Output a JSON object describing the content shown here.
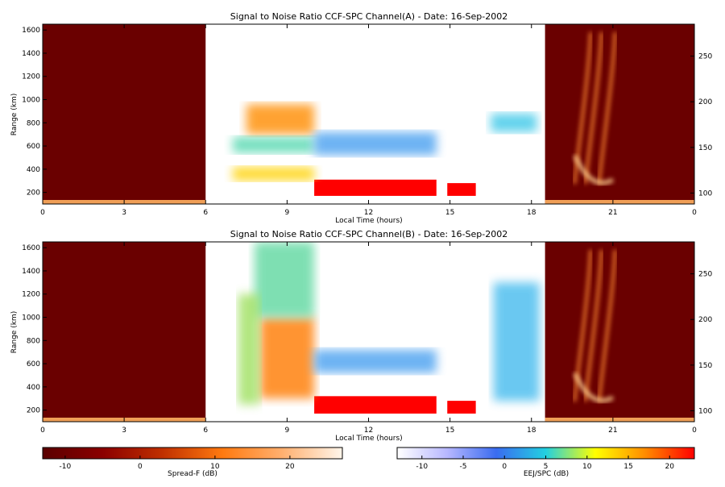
{
  "colors": {
    "background": "#ffffff",
    "frame": "#000000",
    "spreadf_dark": "#6a0000",
    "snr_red": "#ff0000"
  },
  "chart_data": [
    {
      "type": "heatmap",
      "title": "Signal to Noise Ratio CCF-SPC Channel(A) - Date: 16-Sep-2002",
      "xlabel": "Local Time (hours)",
      "ylabel": "Range (km)",
      "x_tick_labels": [
        "0",
        "3",
        "6",
        "9",
        "12",
        "15",
        "18",
        "21",
        "0"
      ],
      "y_tick_labels": [
        "200",
        "400",
        "600",
        "800",
        "1000",
        "1200",
        "1400",
        "1600"
      ],
      "y2_tick_labels": [
        "100",
        "150",
        "200",
        "250"
      ],
      "xlim": [
        0,
        24
      ],
      "ylim": [
        100,
        1650
      ],
      "y2lim": [
        88,
        285
      ],
      "spreadf_segments": [
        [
          0,
          6
        ],
        [
          18.5,
          24
        ]
      ],
      "snr_segments": [
        [
          6,
          18.5
        ]
      ],
      "features": [
        {
          "x0": 10.0,
          "x1": 14.5,
          "y0": 170,
          "y1": 310,
          "color": "#ff0000"
        },
        {
          "x0": 14.9,
          "x1": 15.95,
          "y0": 170,
          "y1": 280,
          "color": "#ff0000"
        },
        {
          "x0": 7.5,
          "x1": 10.0,
          "y0": 700,
          "y1": 960,
          "color": "#ff8c00"
        },
        {
          "x0": 7.0,
          "x1": 10.0,
          "y0": 300,
          "y1": 420,
          "color": "#ffd200"
        },
        {
          "x0": 7.0,
          "x1": 10.0,
          "y0": 540,
          "y1": 680,
          "color": "#55d8b0"
        },
        {
          "x0": 10.0,
          "x1": 14.5,
          "y0": 520,
          "y1": 720,
          "color": "#4aa0f0"
        },
        {
          "x0": 16.5,
          "x1": 18.2,
          "y0": 720,
          "y1": 880,
          "color": "#3cc8e8"
        }
      ]
    },
    {
      "type": "heatmap",
      "title": "Signal to Noise Ratio CCF-SPC Channel(B) - Date: 16-Sep-2002",
      "xlabel": "Local Time (hours)",
      "ylabel": "Range (km)",
      "x_tick_labels": [
        "0",
        "3",
        "6",
        "9",
        "12",
        "15",
        "18",
        "21",
        "0"
      ],
      "y_tick_labels": [
        "200",
        "400",
        "600",
        "800",
        "1000",
        "1200",
        "1400",
        "1600"
      ],
      "y2_tick_labels": [
        "100",
        "150",
        "200",
        "250"
      ],
      "xlim": [
        0,
        24
      ],
      "ylim": [
        100,
        1650
      ],
      "y2lim": [
        88,
        285
      ],
      "spreadf_segments": [
        [
          0,
          6
        ],
        [
          18.5,
          24
        ]
      ],
      "snr_segments": [
        [
          6,
          18.5
        ]
      ],
      "features": [
        {
          "x0": 10.0,
          "x1": 14.5,
          "y0": 170,
          "y1": 320,
          "color": "#ff0000"
        },
        {
          "x0": 14.9,
          "x1": 15.95,
          "y0": 170,
          "y1": 280,
          "color": "#ff0000"
        },
        {
          "x0": 8.0,
          "x1": 10.0,
          "y0": 300,
          "y1": 1000,
          "color": "#ff7a00"
        },
        {
          "x0": 7.8,
          "x1": 10.0,
          "y0": 1000,
          "y1": 1650,
          "color": "#5fd8a0"
        },
        {
          "x0": 7.2,
          "x1": 8.0,
          "y0": 250,
          "y1": 1200,
          "color": "#9fe060"
        },
        {
          "x0": 10.0,
          "x1": 14.5,
          "y0": 520,
          "y1": 720,
          "color": "#4aa0f0"
        },
        {
          "x0": 16.6,
          "x1": 18.3,
          "y0": 280,
          "y1": 1300,
          "color": "#44bbee"
        }
      ]
    },
    {
      "type": "colorbar",
      "label": "Spread-F (dB)",
      "tick_labels": [
        "-10",
        "0",
        "10",
        "20"
      ],
      "ticks": [
        -10,
        0,
        10,
        20
      ],
      "range": [
        -13,
        27
      ],
      "colors": [
        "#5a0000",
        "#8b0000",
        "#c03000",
        "#ff7a10",
        "#ffb070",
        "#fff5ea"
      ]
    },
    {
      "type": "colorbar",
      "label": "EEJ/SPC (dB)",
      "tick_labels": [
        "-10",
        "-5",
        "0",
        "5",
        "10",
        "15",
        "20"
      ],
      "ticks": [
        -10,
        -5,
        0,
        5,
        10,
        15,
        20
      ],
      "range": [
        -13,
        23
      ],
      "colors": [
        "#ffffff",
        "#b8b8ff",
        "#3a6cf0",
        "#22d0e0",
        "#ffff00",
        "#ff8c00",
        "#ff0000"
      ]
    }
  ]
}
